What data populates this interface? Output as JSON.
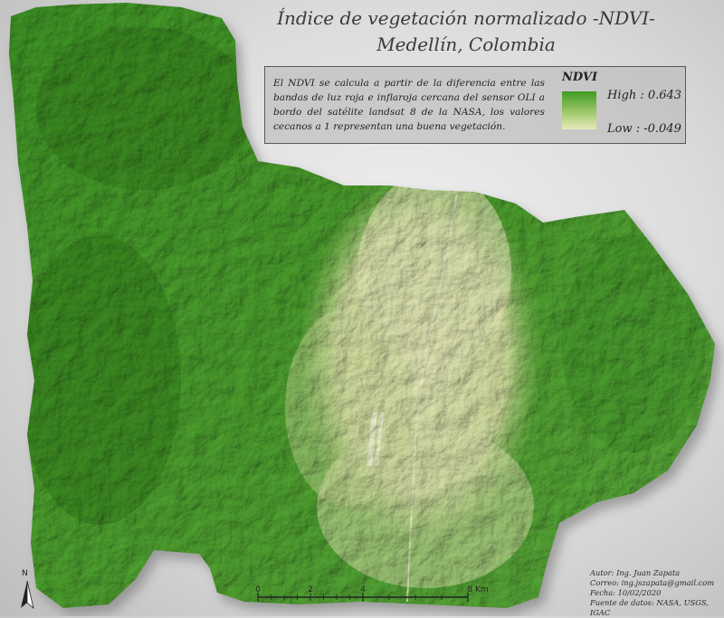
{
  "map": {
    "title_line1": "Índice de vegetación normalizado -NDVI-",
    "title_line2": "Medellín, Colombia",
    "description": "El NDVI se calcula a partir de la diferencia entre las bandas de luz roja e inflaroja cercana del sensor OLI a bordo del satélite landsat 8 de la NASA, los valores cecanos a 1 representan una buena vegetación.",
    "legend": {
      "title": "NDVI",
      "high_label": "High : 0.643",
      "low_label": "Low : -0.049",
      "high_color": "#3f9b23",
      "low_color": "#e6ebbb"
    },
    "north_arrow": "N",
    "scale_bar": {
      "ticks": [
        "0",
        "2",
        "4",
        "8 Km"
      ]
    },
    "credits": {
      "author": "Autor: Ing. Juan Zapata",
      "email": "Correo: ing.jszapata@gmail.com",
      "date": "Fecha: 10/02/2020",
      "source": "Fuente de datos: NASA, USGS, IGAC"
    },
    "colors": {
      "vegetation_dark": "#2f7d18",
      "vegetation_mid": "#5aa83a",
      "urban": "#d9dfac",
      "background": "#dcdcdc"
    }
  }
}
